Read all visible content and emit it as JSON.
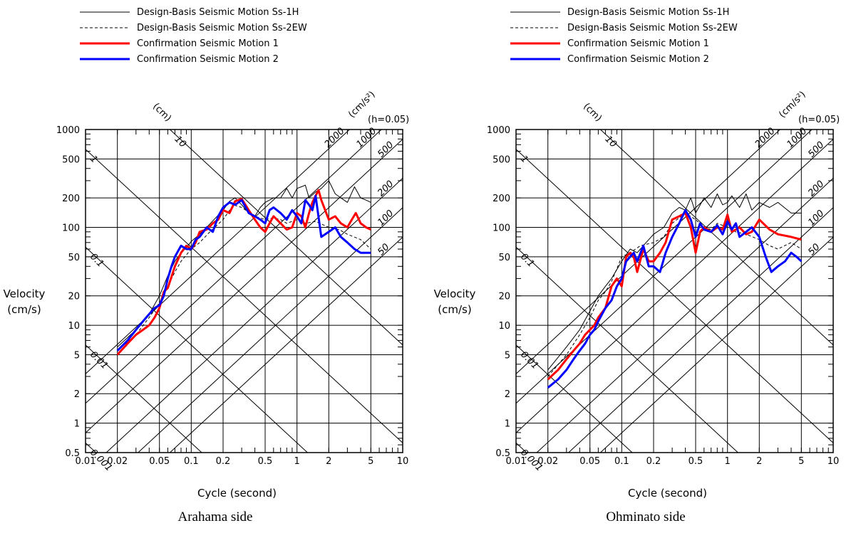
{
  "legend": [
    {
      "label": "Design-Basis Seismic Motion Ss-1H",
      "color": "#000000",
      "dash": "solid",
      "width": 1
    },
    {
      "label": "Design-Basis Seismic Motion Ss-2EW",
      "color": "#000000",
      "dash": "dashed",
      "width": 1
    },
    {
      "label": "Confirmation Seismic Motion 1",
      "color": "#ff0000",
      "dash": "solid",
      "width": 3
    },
    {
      "label": "Confirmation Seismic Motion 2",
      "color": "#0000ff",
      "dash": "solid",
      "width": 3
    }
  ],
  "axis": {
    "xlabel": "Cycle (second)",
    "ylabel_line1": "Velocity",
    "ylabel_line2": "(cm/s)",
    "disp_unit": "(cm)",
    "acc_unit": "(cm/s²)",
    "damping": "(h=0.05)"
  },
  "chart_data": [
    {
      "type": "line",
      "scale": "log-log tripartite",
      "caption": "Arahama side",
      "xlim": [
        0.01,
        10
      ],
      "ylim": [
        0.5,
        1000
      ],
      "x_ticks": [
        0.01,
        0.02,
        0.05,
        0.1,
        0.2,
        0.5,
        1,
        2,
        5,
        10
      ],
      "x_tick_labels": [
        "0.01",
        "0.02",
        "0.05",
        "0.1",
        "0.2",
        "0.5",
        "1",
        "2",
        "5",
        "10"
      ],
      "y_ticks": [
        0.5,
        1,
        2,
        5,
        10,
        20,
        50,
        100,
        200,
        500,
        1000
      ],
      "y_tick_labels": [
        "0.5",
        "1",
        "2",
        "5",
        "10",
        "20",
        "50",
        "100",
        "200",
        "500",
        "1000"
      ],
      "displacement_lines": [
        0.001,
        0.01,
        0.1,
        1,
        10
      ],
      "displacement_labels": [
        "0.001",
        "0.01",
        "0.1",
        "1",
        "10"
      ],
      "acceleration_lines": [
        50,
        100,
        200,
        500,
        1000,
        2000
      ],
      "acceleration_labels": [
        "50",
        "100",
        "200",
        "500",
        "1000",
        "2000"
      ],
      "series": [
        {
          "name": "Design-Basis Seismic Motion Ss-1H",
          "x": [
            0.02,
            0.03,
            0.04,
            0.05,
            0.06,
            0.07,
            0.08,
            0.09,
            0.1,
            0.12,
            0.14,
            0.17,
            0.2,
            0.23,
            0.26,
            0.3,
            0.35,
            0.4,
            0.45,
            0.5,
            0.6,
            0.7,
            0.8,
            0.9,
            1.0,
            1.1,
            1.2,
            1.3,
            1.5,
            1.7,
            2.0,
            2.3,
            2.6,
            3.0,
            3.5,
            4.0,
            4.5,
            5.0
          ],
          "y": [
            6,
            9,
            13,
            20,
            32,
            45,
            55,
            62,
            72,
            85,
            100,
            125,
            150,
            185,
            200,
            170,
            140,
            130,
            160,
            180,
            200,
            200,
            250,
            200,
            250,
            260,
            270,
            200,
            230,
            250,
            300,
            220,
            200,
            180,
            260,
            200,
            190,
            180
          ]
        },
        {
          "name": "Design-Basis Seismic Motion Ss-2EW",
          "x": [
            0.02,
            0.03,
            0.04,
            0.05,
            0.06,
            0.07,
            0.08,
            0.1,
            0.12,
            0.15,
            0.2,
            0.25,
            0.3,
            0.4,
            0.5,
            0.6,
            0.7,
            0.8,
            1.0,
            1.2,
            1.5,
            2.0,
            2.5,
            3.0,
            4.0,
            5.0
          ],
          "y": [
            5.5,
            8,
            12,
            17,
            25,
            35,
            45,
            60,
            70,
            90,
            120,
            170,
            160,
            130,
            120,
            125,
            120,
            110,
            120,
            110,
            115,
            100,
            95,
            85,
            75,
            60
          ]
        },
        {
          "name": "Confirmation Seismic Motion 1",
          "x": [
            0.02,
            0.025,
            0.03,
            0.035,
            0.04,
            0.045,
            0.05,
            0.055,
            0.06,
            0.07,
            0.08,
            0.09,
            0.1,
            0.11,
            0.12,
            0.14,
            0.16,
            0.18,
            0.2,
            0.23,
            0.26,
            0.3,
            0.35,
            0.4,
            0.45,
            0.5,
            0.55,
            0.6,
            0.7,
            0.8,
            0.9,
            1.0,
            1.1,
            1.2,
            1.3,
            1.4,
            1.5,
            1.6,
            1.7,
            2.0,
            2.3,
            2.6,
            3.0,
            3.3,
            3.6,
            4.0,
            4.5,
            5.0
          ],
          "y": [
            5,
            6.5,
            8,
            9,
            10,
            12,
            15,
            22,
            24,
            40,
            55,
            65,
            60,
            70,
            90,
            95,
            110,
            120,
            150,
            140,
            185,
            195,
            150,
            120,
            100,
            90,
            110,
            130,
            110,
            95,
            100,
            140,
            130,
            100,
            140,
            180,
            210,
            240,
            190,
            120,
            130,
            110,
            100,
            120,
            140,
            110,
            100,
            95
          ]
        },
        {
          "name": "Confirmation Seismic Motion 2",
          "x": [
            0.02,
            0.025,
            0.03,
            0.035,
            0.04,
            0.045,
            0.05,
            0.055,
            0.06,
            0.065,
            0.07,
            0.08,
            0.09,
            0.1,
            0.11,
            0.12,
            0.14,
            0.16,
            0.18,
            0.2,
            0.23,
            0.26,
            0.3,
            0.35,
            0.4,
            0.45,
            0.5,
            0.55,
            0.6,
            0.7,
            0.8,
            0.9,
            1.0,
            1.1,
            1.2,
            1.3,
            1.4,
            1.5,
            1.7,
            2.0,
            2.3,
            2.6,
            3.0,
            3.5,
            4.0,
            4.5,
            5.0
          ],
          "y": [
            5.5,
            7,
            9,
            11,
            13,
            15,
            16,
            20,
            30,
            40,
            50,
            65,
            60,
            60,
            75,
            80,
            100,
            90,
            130,
            160,
            180,
            170,
            190,
            140,
            130,
            120,
            110,
            150,
            160,
            140,
            120,
            150,
            130,
            110,
            190,
            170,
            150,
            210,
            80,
            90,
            100,
            80,
            70,
            60,
            55,
            55,
            55
          ]
        }
      ]
    },
    {
      "type": "line",
      "scale": "log-log tripartite",
      "caption": "Ohminato side",
      "xlim": [
        0.01,
        10
      ],
      "ylim": [
        0.5,
        1000
      ],
      "x_ticks": [
        0.01,
        0.02,
        0.05,
        0.1,
        0.2,
        0.5,
        1,
        2,
        5,
        10
      ],
      "x_tick_labels": [
        "0.01",
        "0.02",
        "0.05",
        "0.1",
        "0.2",
        "0.5",
        "1",
        "2",
        "5",
        "10"
      ],
      "y_ticks": [
        0.5,
        1,
        2,
        5,
        10,
        20,
        50,
        100,
        200,
        500,
        1000
      ],
      "y_tick_labels": [
        "0.5",
        "1",
        "2",
        "5",
        "10",
        "20",
        "50",
        "100",
        "200",
        "500",
        "1000"
      ],
      "displacement_lines": [
        0.001,
        0.01,
        0.1,
        1,
        10
      ],
      "displacement_labels": [
        "0.001",
        "0.01",
        "0.1",
        "1",
        "10"
      ],
      "acceleration_lines": [
        50,
        100,
        200,
        500,
        1000,
        2000
      ],
      "acceleration_labels": [
        "50",
        "100",
        "200",
        "500",
        "1000",
        "2000"
      ],
      "series": [
        {
          "name": "Design-Basis Seismic Motion Ss-1H",
          "x": [
            0.02,
            0.03,
            0.04,
            0.05,
            0.06,
            0.07,
            0.08,
            0.1,
            0.12,
            0.14,
            0.17,
            0.2,
            0.25,
            0.3,
            0.35,
            0.4,
            0.45,
            0.5,
            0.6,
            0.7,
            0.8,
            0.9,
            1.0,
            1.1,
            1.3,
            1.5,
            1.7,
            2.0,
            2.5,
            3.0,
            4.0,
            5.0
          ],
          "y": [
            3.5,
            6,
            9,
            14,
            20,
            25,
            30,
            45,
            60,
            55,
            70,
            85,
            100,
            140,
            160,
            150,
            200,
            140,
            200,
            160,
            220,
            170,
            180,
            210,
            160,
            220,
            150,
            180,
            160,
            180,
            140,
            140
          ]
        },
        {
          "name": "Design-Basis Seismic Motion Ss-2EW",
          "x": [
            0.02,
            0.03,
            0.04,
            0.05,
            0.06,
            0.07,
            0.08,
            0.1,
            0.12,
            0.15,
            0.2,
            0.25,
            0.3,
            0.4,
            0.5,
            0.6,
            0.7,
            0.8,
            1.0,
            1.2,
            1.5,
            2.0,
            2.5,
            3.0,
            4.0,
            5.0
          ],
          "y": [
            3,
            5,
            8,
            12,
            18,
            22,
            28,
            50,
            55,
            65,
            70,
            80,
            110,
            140,
            120,
            100,
            95,
            110,
            100,
            90,
            85,
            75,
            65,
            60,
            70,
            60
          ]
        },
        {
          "name": "Confirmation Seismic Motion 1",
          "x": [
            0.02,
            0.025,
            0.03,
            0.035,
            0.04,
            0.045,
            0.05,
            0.055,
            0.06,
            0.07,
            0.08,
            0.09,
            0.1,
            0.11,
            0.12,
            0.13,
            0.14,
            0.16,
            0.18,
            0.2,
            0.23,
            0.26,
            0.3,
            0.35,
            0.4,
            0.45,
            0.5,
            0.55,
            0.6,
            0.7,
            0.8,
            0.9,
            1.0,
            1.1,
            1.2,
            1.3,
            1.5,
            1.7,
            2.0,
            2.5,
            3.0,
            4.0,
            5.0
          ],
          "y": [
            2.8,
            3.5,
            4.5,
            5.5,
            6.5,
            8,
            9,
            10,
            12,
            15,
            25,
            30,
            25,
            50,
            55,
            50,
            35,
            60,
            45,
            45,
            55,
            70,
            120,
            130,
            140,
            100,
            55,
            90,
            100,
            90,
            100,
            95,
            135,
            90,
            95,
            100,
            85,
            90,
            120,
            95,
            85,
            80,
            75
          ]
        },
        {
          "name": "Confirmation Seismic Motion 2",
          "x": [
            0.02,
            0.025,
            0.03,
            0.035,
            0.04,
            0.045,
            0.05,
            0.055,
            0.06,
            0.07,
            0.08,
            0.09,
            0.1,
            0.11,
            0.12,
            0.13,
            0.14,
            0.16,
            0.18,
            0.2,
            0.23,
            0.26,
            0.3,
            0.35,
            0.4,
            0.45,
            0.5,
            0.55,
            0.6,
            0.7,
            0.8,
            0.9,
            1.0,
            1.1,
            1.2,
            1.3,
            1.5,
            1.7,
            2.0,
            2.3,
            2.6,
            3.0,
            3.5,
            4.0,
            4.5,
            5.0
          ],
          "y": [
            2.3,
            2.8,
            3.5,
            4.5,
            5.5,
            6.5,
            8,
            9,
            11,
            15,
            18,
            25,
            30,
            45,
            50,
            55,
            45,
            65,
            40,
            40,
            35,
            55,
            80,
            110,
            150,
            120,
            80,
            110,
            95,
            90,
            105,
            85,
            115,
            95,
            110,
            80,
            90,
            100,
            80,
            50,
            35,
            40,
            45,
            55,
            50,
            45
          ]
        }
      ]
    }
  ]
}
